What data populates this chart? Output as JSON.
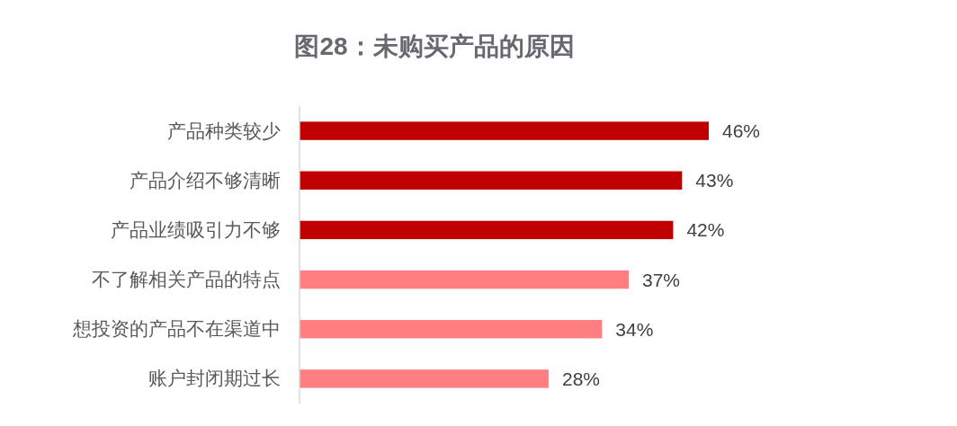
{
  "chart_data": {
    "type": "bar",
    "orientation": "horizontal",
    "title": "图28：未购买产品的原因",
    "categories": [
      "产品种类较少",
      "产品介绍不够清晰",
      "产品业绩吸引力不够",
      "不了解相关产品的特点",
      "想投资的产品不在渠道中",
      "账户封闭期过长"
    ],
    "values": [
      46,
      43,
      42,
      37,
      34,
      28
    ],
    "colors": [
      "#c00000",
      "#c00000",
      "#c00000",
      "#ff7f80",
      "#ff7f80",
      "#ff7f80"
    ],
    "value_labels": [
      "46%",
      "43%",
      "42%",
      "37%",
      "34%",
      "28%"
    ]
  }
}
